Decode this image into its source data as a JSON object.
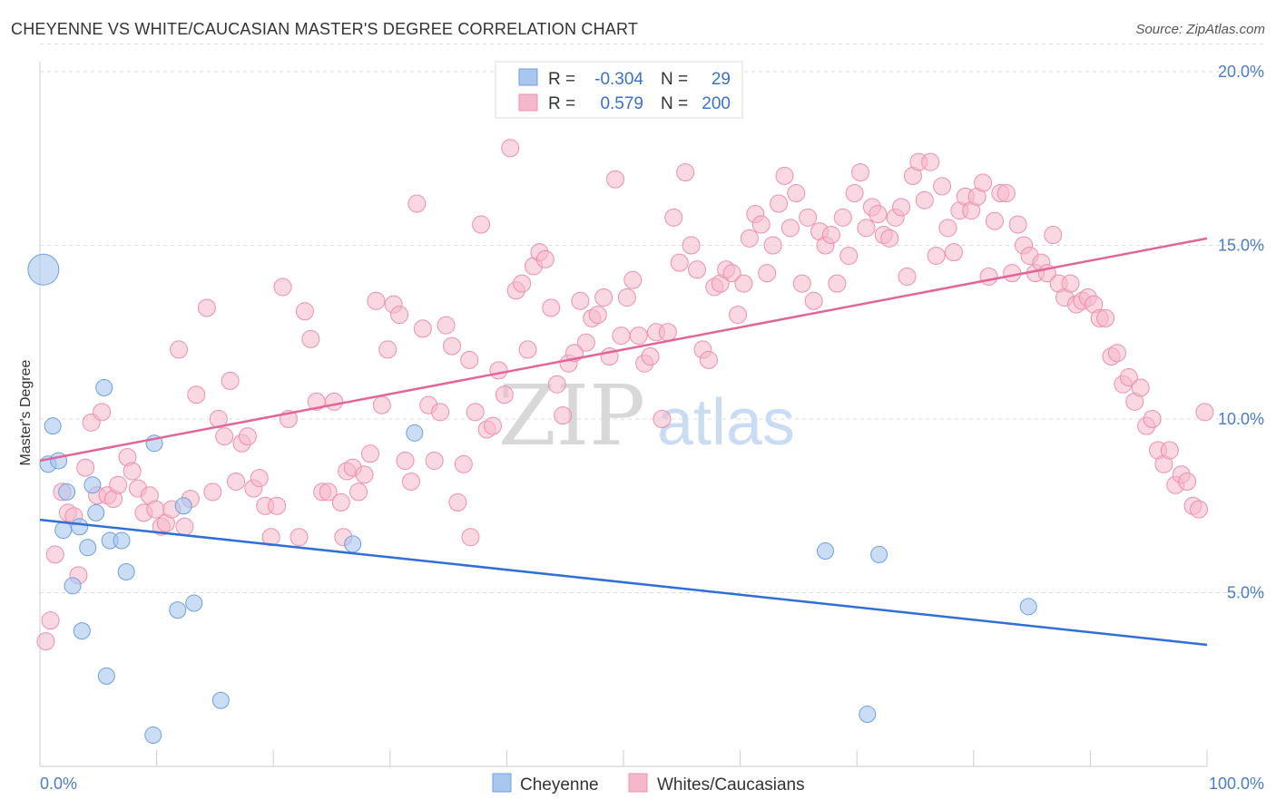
{
  "header": {
    "title": "CHEYENNE VS WHITE/CAUCASIAN MASTER'S DEGREE CORRELATION CHART",
    "source": "Source: ZipAtlas.com"
  },
  "watermark": {
    "zip": "ZIP",
    "atlas": "atlas"
  },
  "legend": {
    "rows": [
      {
        "r_label": "R =",
        "r_value": "-0.304",
        "n_label": "N =",
        "n_value": "29",
        "color": "#a9c6ef"
      },
      {
        "r_label": "R =",
        "r_value": "0.579",
        "n_label": "N =",
        "n_value": "200",
        "color": "#f5b8cb"
      }
    ]
  },
  "bottom_legend": {
    "items": [
      {
        "label": "Cheyenne",
        "color": "#a9c6ef"
      },
      {
        "label": "Whites/Caucasians",
        "color": "#f5b8cb"
      }
    ]
  },
  "chart_data": {
    "type": "scatter",
    "title": "CHEYENNE VS WHITE/CAUCASIAN MASTER'S DEGREE CORRELATION CHART",
    "xlabel": "",
    "ylabel": "Master's Degree",
    "xlim": [
      0,
      100
    ],
    "ylim": [
      0,
      20.8
    ],
    "x_tick_labels": [
      "0.0%",
      "100.0%"
    ],
    "y_ticks": [
      5,
      10,
      15,
      20
    ],
    "y_tick_labels": [
      "5.0%",
      "10.0%",
      "15.0%",
      "20.0%"
    ],
    "grid": true,
    "colors": {
      "cheyenne_fill": "#a9c6ef",
      "cheyenne_stroke": "#6f9fe0",
      "cheyenne_line": "#2f6fd6",
      "white_fill": "#f5b8cb",
      "white_stroke": "#ee8fae",
      "white_line": "#e2659a",
      "tick_label": "#4a7cc9"
    },
    "series": [
      {
        "name": "Cheyenne",
        "trend": {
          "x": [
            0,
            100
          ],
          "y": [
            7.1,
            3.5
          ]
        },
        "points": [
          {
            "x": 0.3,
            "y": 14.3,
            "size": "large"
          },
          {
            "x": 0.7,
            "y": 8.7
          },
          {
            "x": 1.1,
            "y": 9.8
          },
          {
            "x": 1.6,
            "y": 8.8
          },
          {
            "x": 2.0,
            "y": 6.8
          },
          {
            "x": 2.3,
            "y": 7.9
          },
          {
            "x": 2.8,
            "y": 5.2
          },
          {
            "x": 3.4,
            "y": 6.9
          },
          {
            "x": 3.6,
            "y": 3.9
          },
          {
            "x": 4.1,
            "y": 6.3
          },
          {
            "x": 4.5,
            "y": 8.1
          },
          {
            "x": 4.8,
            "y": 7.3
          },
          {
            "x": 5.5,
            "y": 10.9
          },
          {
            "x": 5.7,
            "y": 2.6
          },
          {
            "x": 6.0,
            "y": 6.5
          },
          {
            "x": 7.0,
            "y": 6.5
          },
          {
            "x": 7.4,
            "y": 5.6
          },
          {
            "x": 9.7,
            "y": 0.9
          },
          {
            "x": 9.8,
            "y": 9.3
          },
          {
            "x": 11.8,
            "y": 4.5
          },
          {
            "x": 12.3,
            "y": 7.5
          },
          {
            "x": 13.2,
            "y": 4.7
          },
          {
            "x": 15.5,
            "y": 1.9
          },
          {
            "x": 26.8,
            "y": 6.4
          },
          {
            "x": 32.1,
            "y": 9.6
          },
          {
            "x": 67.3,
            "y": 6.2
          },
          {
            "x": 70.9,
            "y": 1.5
          },
          {
            "x": 71.9,
            "y": 6.1
          },
          {
            "x": 84.7,
            "y": 4.6
          }
        ]
      },
      {
        "name": "Whites/Caucasians",
        "trend": {
          "x": [
            0,
            100
          ],
          "y": [
            8.8,
            15.2
          ]
        },
        "points": [
          {
            "x": 0.5,
            "y": 3.6
          },
          {
            "x": 0.9,
            "y": 4.2
          },
          {
            "x": 1.3,
            "y": 6.1
          },
          {
            "x": 1.9,
            "y": 7.9
          },
          {
            "x": 2.4,
            "y": 7.3
          },
          {
            "x": 2.9,
            "y": 7.2
          },
          {
            "x": 3.3,
            "y": 5.5
          },
          {
            "x": 3.9,
            "y": 8.6
          },
          {
            "x": 4.4,
            "y": 9.9
          },
          {
            "x": 4.9,
            "y": 7.8
          },
          {
            "x": 5.3,
            "y": 10.2
          },
          {
            "x": 5.8,
            "y": 7.8
          },
          {
            "x": 6.3,
            "y": 7.7
          },
          {
            "x": 6.7,
            "y": 8.1
          },
          {
            "x": 7.5,
            "y": 8.9
          },
          {
            "x": 7.9,
            "y": 8.5
          },
          {
            "x": 8.4,
            "y": 8.0
          },
          {
            "x": 8.9,
            "y": 7.3
          },
          {
            "x": 9.4,
            "y": 7.8
          },
          {
            "x": 9.9,
            "y": 7.4
          },
          {
            "x": 10.4,
            "y": 6.9
          },
          {
            "x": 10.8,
            "y": 7.0
          },
          {
            "x": 11.3,
            "y": 7.4
          },
          {
            "x": 11.9,
            "y": 12.0
          },
          {
            "x": 12.4,
            "y": 6.9
          },
          {
            "x": 12.9,
            "y": 7.7
          },
          {
            "x": 13.4,
            "y": 10.7
          },
          {
            "x": 14.3,
            "y": 13.2
          },
          {
            "x": 14.8,
            "y": 7.9
          },
          {
            "x": 15.3,
            "y": 10.0
          },
          {
            "x": 15.8,
            "y": 9.5
          },
          {
            "x": 16.3,
            "y": 11.1
          },
          {
            "x": 16.8,
            "y": 8.2
          },
          {
            "x": 17.3,
            "y": 9.3
          },
          {
            "x": 17.8,
            "y": 9.5
          },
          {
            "x": 18.3,
            "y": 8.0
          },
          {
            "x": 18.8,
            "y": 8.3
          },
          {
            "x": 19.3,
            "y": 7.5
          },
          {
            "x": 19.8,
            "y": 6.6
          },
          {
            "x": 20.3,
            "y": 7.5
          },
          {
            "x": 20.8,
            "y": 13.8
          },
          {
            "x": 21.3,
            "y": 10.0
          },
          {
            "x": 22.2,
            "y": 6.6
          },
          {
            "x": 22.7,
            "y": 13.1
          },
          {
            "x": 23.2,
            "y": 12.3
          },
          {
            "x": 23.7,
            "y": 10.5
          },
          {
            "x": 24.2,
            "y": 7.9
          },
          {
            "x": 24.7,
            "y": 7.9
          },
          {
            "x": 25.2,
            "y": 10.5
          },
          {
            "x": 25.8,
            "y": 7.6
          },
          {
            "x": 26.3,
            "y": 8.5
          },
          {
            "x": 26.8,
            "y": 8.6
          },
          {
            "x": 27.3,
            "y": 7.9
          },
          {
            "x": 27.8,
            "y": 8.4
          },
          {
            "x": 28.3,
            "y": 9.0
          },
          {
            "x": 28.8,
            "y": 13.4
          },
          {
            "x": 29.3,
            "y": 10.4
          },
          {
            "x": 29.8,
            "y": 12.0
          },
          {
            "x": 30.3,
            "y": 13.3
          },
          {
            "x": 30.8,
            "y": 13.0
          },
          {
            "x": 31.3,
            "y": 8.8
          },
          {
            "x": 31.8,
            "y": 8.2
          },
          {
            "x": 32.3,
            "y": 16.2
          },
          {
            "x": 32.8,
            "y": 12.6
          },
          {
            "x": 33.3,
            "y": 10.4
          },
          {
            "x": 33.8,
            "y": 8.8
          },
          {
            "x": 34.3,
            "y": 10.2
          },
          {
            "x": 34.8,
            "y": 12.7
          },
          {
            "x": 35.3,
            "y": 12.1
          },
          {
            "x": 35.8,
            "y": 7.6
          },
          {
            "x": 36.3,
            "y": 8.7
          },
          {
            "x": 36.8,
            "y": 11.7
          },
          {
            "x": 37.3,
            "y": 10.2
          },
          {
            "x": 37.8,
            "y": 15.6
          },
          {
            "x": 38.3,
            "y": 9.7
          },
          {
            "x": 38.8,
            "y": 9.8
          },
          {
            "x": 39.3,
            "y": 11.4
          },
          {
            "x": 39.8,
            "y": 10.7
          },
          {
            "x": 40.3,
            "y": 17.8
          },
          {
            "x": 40.8,
            "y": 13.7
          },
          {
            "x": 41.3,
            "y": 13.9
          },
          {
            "x": 41.8,
            "y": 12.0
          },
          {
            "x": 42.3,
            "y": 14.4
          },
          {
            "x": 42.8,
            "y": 14.8
          },
          {
            "x": 43.3,
            "y": 14.6
          },
          {
            "x": 43.8,
            "y": 13.2
          },
          {
            "x": 44.3,
            "y": 11.0
          },
          {
            "x": 44.8,
            "y": 10.1
          },
          {
            "x": 45.3,
            "y": 11.6
          },
          {
            "x": 45.8,
            "y": 11.9
          },
          {
            "x": 46.3,
            "y": 13.4
          },
          {
            "x": 46.8,
            "y": 12.2
          },
          {
            "x": 47.3,
            "y": 12.9
          },
          {
            "x": 47.8,
            "y": 13.0
          },
          {
            "x": 48.3,
            "y": 13.5
          },
          {
            "x": 48.8,
            "y": 11.8
          },
          {
            "x": 49.3,
            "y": 16.9
          },
          {
            "x": 49.8,
            "y": 12.4
          },
          {
            "x": 50.3,
            "y": 13.5
          },
          {
            "x": 50.8,
            "y": 14.0
          },
          {
            "x": 51.3,
            "y": 12.4
          },
          {
            "x": 51.8,
            "y": 11.6
          },
          {
            "x": 52.3,
            "y": 11.8
          },
          {
            "x": 52.8,
            "y": 12.5
          },
          {
            "x": 53.3,
            "y": 10.0
          },
          {
            "x": 53.8,
            "y": 12.5
          },
          {
            "x": 54.3,
            "y": 15.8
          },
          {
            "x": 54.8,
            "y": 14.5
          },
          {
            "x": 55.3,
            "y": 17.1
          },
          {
            "x": 55.8,
            "y": 15.0
          },
          {
            "x": 56.3,
            "y": 14.3
          },
          {
            "x": 56.8,
            "y": 12.0
          },
          {
            "x": 57.3,
            "y": 11.7
          },
          {
            "x": 57.8,
            "y": 13.8
          },
          {
            "x": 58.3,
            "y": 13.9
          },
          {
            "x": 58.8,
            "y": 14.3
          },
          {
            "x": 59.3,
            "y": 14.2
          },
          {
            "x": 59.8,
            "y": 13.0
          },
          {
            "x": 60.3,
            "y": 13.9
          },
          {
            "x": 60.8,
            "y": 15.2
          },
          {
            "x": 61.3,
            "y": 15.9
          },
          {
            "x": 61.8,
            "y": 15.6
          },
          {
            "x": 62.3,
            "y": 14.2
          },
          {
            "x": 62.8,
            "y": 15.0
          },
          {
            "x": 63.3,
            "y": 16.2
          },
          {
            "x": 63.8,
            "y": 17.0
          },
          {
            "x": 64.3,
            "y": 15.5
          },
          {
            "x": 64.8,
            "y": 16.5
          },
          {
            "x": 65.3,
            "y": 13.9
          },
          {
            "x": 65.8,
            "y": 15.8
          },
          {
            "x": 66.3,
            "y": 13.4
          },
          {
            "x": 66.8,
            "y": 15.4
          },
          {
            "x": 67.3,
            "y": 15.0
          },
          {
            "x": 67.8,
            "y": 15.3
          },
          {
            "x": 68.3,
            "y": 13.9
          },
          {
            "x": 68.8,
            "y": 15.8
          },
          {
            "x": 69.3,
            "y": 14.7
          },
          {
            "x": 69.8,
            "y": 16.5
          },
          {
            "x": 70.3,
            "y": 17.1
          },
          {
            "x": 70.8,
            "y": 15.5
          },
          {
            "x": 71.3,
            "y": 16.1
          },
          {
            "x": 71.8,
            "y": 15.9
          },
          {
            "x": 72.3,
            "y": 15.3
          },
          {
            "x": 72.8,
            "y": 15.2
          },
          {
            "x": 73.3,
            "y": 15.8
          },
          {
            "x": 73.8,
            "y": 16.1
          },
          {
            "x": 74.3,
            "y": 14.1
          },
          {
            "x": 74.8,
            "y": 17.0
          },
          {
            "x": 75.3,
            "y": 17.4
          },
          {
            "x": 75.8,
            "y": 16.3
          },
          {
            "x": 76.3,
            "y": 17.4
          },
          {
            "x": 76.8,
            "y": 14.7
          },
          {
            "x": 77.3,
            "y": 16.7
          },
          {
            "x": 77.8,
            "y": 15.5
          },
          {
            "x": 78.3,
            "y": 14.8
          },
          {
            "x": 78.8,
            "y": 16.0
          },
          {
            "x": 79.3,
            "y": 16.4
          },
          {
            "x": 79.8,
            "y": 16.0
          },
          {
            "x": 80.3,
            "y": 16.4
          },
          {
            "x": 80.8,
            "y": 16.8
          },
          {
            "x": 81.3,
            "y": 14.1
          },
          {
            "x": 81.8,
            "y": 15.7
          },
          {
            "x": 82.3,
            "y": 16.5
          },
          {
            "x": 82.8,
            "y": 16.5
          },
          {
            "x": 83.3,
            "y": 14.2
          },
          {
            "x": 83.8,
            "y": 15.6
          },
          {
            "x": 84.3,
            "y": 15.0
          },
          {
            "x": 84.8,
            "y": 14.7
          },
          {
            "x": 85.3,
            "y": 14.2
          },
          {
            "x": 85.8,
            "y": 14.5
          },
          {
            "x": 86.3,
            "y": 14.2
          },
          {
            "x": 86.8,
            "y": 15.3
          },
          {
            "x": 87.3,
            "y": 13.9
          },
          {
            "x": 87.8,
            "y": 13.5
          },
          {
            "x": 88.3,
            "y": 13.9
          },
          {
            "x": 88.8,
            "y": 13.3
          },
          {
            "x": 89.3,
            "y": 13.4
          },
          {
            "x": 89.8,
            "y": 13.5
          },
          {
            "x": 90.3,
            "y": 13.3
          },
          {
            "x": 90.8,
            "y": 12.9
          },
          {
            "x": 91.3,
            "y": 12.9
          },
          {
            "x": 91.8,
            "y": 11.8
          },
          {
            "x": 92.3,
            "y": 11.9
          },
          {
            "x": 92.8,
            "y": 11.0
          },
          {
            "x": 93.3,
            "y": 11.2
          },
          {
            "x": 93.8,
            "y": 10.5
          },
          {
            "x": 94.3,
            "y": 10.9
          },
          {
            "x": 94.8,
            "y": 9.8
          },
          {
            "x": 95.3,
            "y": 10.0
          },
          {
            "x": 95.8,
            "y": 9.1
          },
          {
            "x": 96.3,
            "y": 8.7
          },
          {
            "x": 96.8,
            "y": 9.1
          },
          {
            "x": 97.3,
            "y": 8.1
          },
          {
            "x": 97.8,
            "y": 8.4
          },
          {
            "x": 98.3,
            "y": 8.2
          },
          {
            "x": 98.8,
            "y": 7.5
          },
          {
            "x": 99.3,
            "y": 7.4
          },
          {
            "x": 99.8,
            "y": 10.2
          },
          {
            "x": 36.9,
            "y": 6.6
          },
          {
            "x": 26.0,
            "y": 6.6
          }
        ]
      }
    ]
  }
}
